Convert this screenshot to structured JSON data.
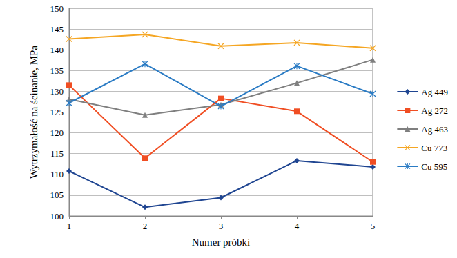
{
  "chart_data": {
    "type": "line",
    "x_label": "Numer próbki",
    "y_label": "Wytrzymałość na ścinanie, MPa",
    "x": [
      1,
      2,
      3,
      4,
      5
    ],
    "xlim": [
      1,
      5
    ],
    "xticks": [
      1,
      2,
      3,
      4,
      5
    ],
    "ylim": [
      100,
      150
    ],
    "yticks": [
      100,
      105,
      110,
      115,
      120,
      125,
      130,
      135,
      140,
      145,
      150
    ],
    "grid": true,
    "legend": "right",
    "series": [
      {
        "name": "Ag 449",
        "color": "#1f4591",
        "marker": "diamond",
        "values": [
          110.8,
          102.1,
          104.4,
          113.3,
          111.8
        ]
      },
      {
        "name": "Ag 272",
        "color": "#f04e23",
        "marker": "square",
        "values": [
          131.5,
          113.9,
          128.3,
          125.2,
          113.0
        ]
      },
      {
        "name": "Ag 463",
        "color": "#7f7f7f",
        "marker": "triangle",
        "values": [
          128.1,
          124.3,
          126.8,
          132.0,
          137.6
        ]
      },
      {
        "name": "Cu 773",
        "color": "#f5a623",
        "marker": "x",
        "values": [
          142.6,
          143.7,
          140.9,
          141.7,
          140.4
        ]
      },
      {
        "name": "Cu 595",
        "color": "#2a7bc4",
        "marker": "star",
        "values": [
          127.2,
          136.6,
          126.4,
          136.1,
          129.4
        ]
      }
    ]
  }
}
